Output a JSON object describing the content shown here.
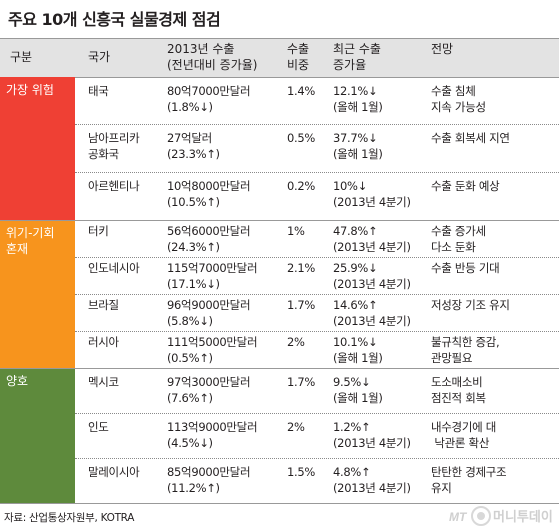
{
  "title": "주요 10개 신흥국 실물경제 점검",
  "headers": {
    "col1": "구분",
    "col2": "국가",
    "col3a": "2013년 수출",
    "col3b": "(전년대비 증가율)",
    "col4a": "수출",
    "col4b": "비중",
    "col5a": "최근 수출",
    "col5b": "증가율",
    "col6": "전망"
  },
  "categories": [
    {
      "label_line1": "가장 위험",
      "label_line2": "",
      "color": "#ef4034"
    },
    {
      "label_line1": "위기-기회",
      "label_line2": "혼재",
      "color": "#f7941d"
    },
    {
      "label_line1": "양호",
      "label_line2": "",
      "color": "#5e8a3c"
    }
  ],
  "rows": [
    {
      "c1": "태국",
      "c2": "",
      "e1": "80억7000만달러",
      "e2": "(1.8%↓)",
      "s": "1.4%",
      "r1": "12.1%↓",
      "r2": "(올해 1월)",
      "o1": "수출 침체",
      "o2": "지속 가능성"
    },
    {
      "c1": "남아프리카",
      "c2": "공화국",
      "e1": "27억달러",
      "e2": "(23.3%↑)",
      "s": "0.5%",
      "r1": "37.7%↓",
      "r2": "(올해 1월)",
      "o1": "수출 회복세 지연",
      "o2": ""
    },
    {
      "c1": "아르헨티나",
      "c2": "",
      "e1": "10억8000만달러",
      "e2": "(10.5%↑)",
      "s": "0.2%",
      "r1": "10%↓",
      "r2": "(2013년 4분기)",
      "o1": "수출 둔화 예상",
      "o2": ""
    },
    {
      "c1": "터키",
      "c2": "",
      "e1": "56억6000만달러",
      "e2": "(24.3%↑)",
      "s": "1%",
      "r1": "47.8%↑",
      "r2": "(2013년 4분기)",
      "o1": "수출 증가세",
      "o2": "다소 둔화"
    },
    {
      "c1": "인도네시아",
      "c2": "",
      "e1": "115억7000만달러",
      "e2": "(17.1%↓)",
      "s": "2.1%",
      "r1": "25.9%↓",
      "r2": "(2013년 4분기)",
      "o1": "수출 반등 기대",
      "o2": ""
    },
    {
      "c1": "브라질",
      "c2": "",
      "e1": "96억9000만달러",
      "e2": "(5.8%↓)",
      "s": "1.7%",
      "r1": "14.6%↑",
      "r2": "(2013년 4분기)",
      "o1": "저성장 기조 유지",
      "o2": ""
    },
    {
      "c1": "러시아",
      "c2": "",
      "e1": "111억5000만달러",
      "e2": "(0.5%↑)",
      "s": "2%",
      "r1": "10.1%↓",
      "r2": "(올해 1월)",
      "o1": "불규칙한 증감,",
      "o2": "관망필요"
    },
    {
      "c1": "멕시코",
      "c2": "",
      "e1": "97억3000만달러",
      "e2": "(7.6%↑)",
      "s": "1.7%",
      "r1": "9.5%↓",
      "r2": "(올해 1월)",
      "o1": "도소매소비",
      "o2": "점진적 회복"
    },
    {
      "c1": "인도",
      "c2": "",
      "e1": "113억9000만달러",
      "e2": "(4.5%↓)",
      "s": "2%",
      "r1": "1.2%↑",
      "r2": "(2013년 4분기)",
      "o1": "내수경기에 대",
      "o2": " 낙관론 확산"
    },
    {
      "c1": "말레이시아",
      "c2": "",
      "e1": "85억9000만달러",
      "e2": "(11.2%↑)",
      "s": "1.5%",
      "r1": "4.8%↑",
      "r2": "(2013년 4분기)",
      "o1": "탄탄한 경제구조",
      "o2": "유지"
    }
  ],
  "source": "자료: 산업통상자원부, KOTRA",
  "logo": {
    "mark": "MT",
    "name": "머니투데이"
  }
}
